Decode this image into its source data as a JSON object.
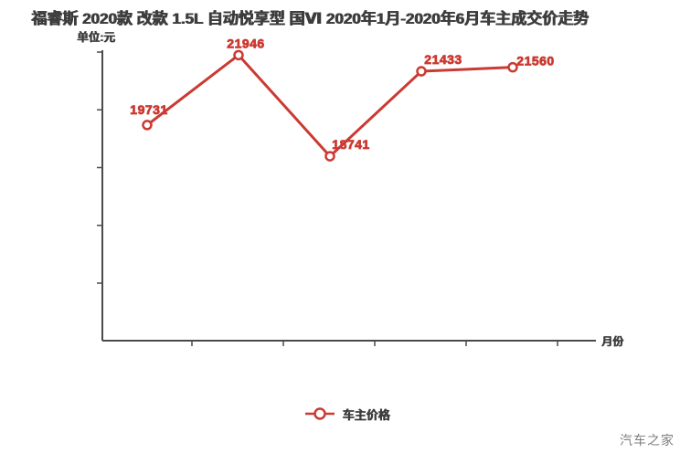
{
  "title": "福睿斯 2020款 改款 1.5L 自动悦享型 国Ⅵ 2020年1月-2020年6月车主成交价走势",
  "unit_label": "单位:元",
  "x_axis_name": "月份",
  "watermark": "汽车之家",
  "legend": {
    "label": "车主价格"
  },
  "colors": {
    "series": "#cb3a32",
    "axis": "#4a4a4a",
    "title": "#3d3d3d",
    "watermark": "#7f7f7f",
    "marker_fill": "#ffffff"
  },
  "chart_data": {
    "type": "line",
    "x": [
      1,
      2,
      3,
      4,
      5
    ],
    "values": [
      19731,
      21946,
      18741,
      21433,
      21560
    ],
    "point_labels": [
      "19731",
      "21946",
      "18741",
      "21433",
      "21560"
    ],
    "title": "福睿斯 2020款 改款 1.5L 自动悦享型 国Ⅵ 2020年1月-2020年6月车主成交价走势",
    "xlabel": "月份",
    "ylabel": "单位:元",
    "ylim": [
      12900,
      22100
    ],
    "grid": false,
    "legend": [
      "车主价格"
    ],
    "legend_position": "bottom",
    "y_tick_count": 5,
    "x_tick_count": 5
  }
}
